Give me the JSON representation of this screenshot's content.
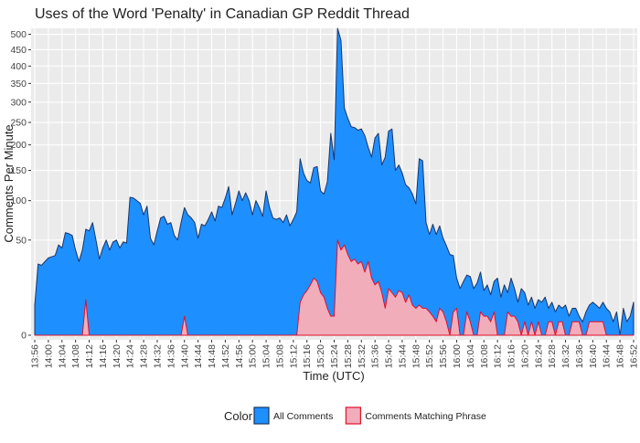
{
  "chart_data": {
    "type": "area",
    "title": "Uses of the Word 'Penalty' in Canadian GP Reddit Thread",
    "x_label": "Time (UTC)",
    "y_label": "Comments Per Minute",
    "legend_title": "Color",
    "y_scale": "sqrt",
    "grid": true,
    "legend_position": "bottom",
    "ylim": [
      0,
      520
    ],
    "yticks": [
      0,
      50,
      100,
      150,
      200,
      250,
      300,
      350,
      400,
      450,
      500
    ],
    "xticks": [
      "13:56",
      "14:00",
      "14:04",
      "14:08",
      "14:12",
      "14:16",
      "14:20",
      "14:24",
      "14:28",
      "14:32",
      "14:36",
      "14:40",
      "14:44",
      "14:48",
      "14:52",
      "14:56",
      "15:00",
      "15:04",
      "15:08",
      "15:12",
      "15:16",
      "15:20",
      "15:24",
      "15:28",
      "15:32",
      "15:36",
      "15:40",
      "15:44",
      "15:48",
      "15:52",
      "15:56",
      "16:00",
      "16:04",
      "16:08",
      "16:12",
      "16:16",
      "16:20",
      "16:24",
      "16:28",
      "16:32",
      "16:36",
      "16:40",
      "16:44",
      "16:48",
      "16:52"
    ],
    "x": [
      "13:56",
      "13:57",
      "13:58",
      "13:59",
      "14:00",
      "14:01",
      "14:02",
      "14:03",
      "14:04",
      "14:05",
      "14:06",
      "14:07",
      "14:08",
      "14:09",
      "14:10",
      "14:11",
      "14:12",
      "14:13",
      "14:14",
      "14:15",
      "14:16",
      "14:17",
      "14:18",
      "14:19",
      "14:20",
      "14:21",
      "14:22",
      "14:23",
      "14:24",
      "14:25",
      "14:26",
      "14:27",
      "14:28",
      "14:29",
      "14:30",
      "14:31",
      "14:32",
      "14:33",
      "14:34",
      "14:35",
      "14:36",
      "14:37",
      "14:38",
      "14:39",
      "14:40",
      "14:41",
      "14:42",
      "14:43",
      "14:44",
      "14:45",
      "14:46",
      "14:47",
      "14:48",
      "14:49",
      "14:50",
      "14:51",
      "14:52",
      "14:53",
      "14:54",
      "14:55",
      "14:56",
      "14:57",
      "14:58",
      "14:59",
      "15:00",
      "15:01",
      "15:02",
      "15:03",
      "15:04",
      "15:05",
      "15:06",
      "15:07",
      "15:08",
      "15:09",
      "15:10",
      "15:11",
      "15:12",
      "15:13",
      "15:14",
      "15:15",
      "15:16",
      "15:17",
      "15:18",
      "15:19",
      "15:20",
      "15:21",
      "15:22",
      "15:23",
      "15:24",
      "15:25",
      "15:26",
      "15:27",
      "15:28",
      "15:29",
      "15:30",
      "15:31",
      "15:32",
      "15:33",
      "15:34",
      "15:35",
      "15:36",
      "15:37",
      "15:38",
      "15:39",
      "15:40",
      "15:41",
      "15:42",
      "15:43",
      "15:44",
      "15:45",
      "15:46",
      "15:47",
      "15:48",
      "15:49",
      "15:50",
      "15:51",
      "15:52",
      "15:53",
      "15:54",
      "15:55",
      "15:56",
      "15:57",
      "15:58",
      "15:59",
      "16:00",
      "16:01",
      "16:02",
      "16:03",
      "16:04",
      "16:05",
      "16:06",
      "16:07",
      "16:08",
      "16:09",
      "16:10",
      "16:11",
      "16:12",
      "16:13",
      "16:14",
      "16:15",
      "16:16",
      "16:17",
      "16:18",
      "16:19",
      "16:20",
      "16:21",
      "16:22",
      "16:23",
      "16:24",
      "16:25",
      "16:26",
      "16:27",
      "16:28",
      "16:29",
      "16:30",
      "16:31",
      "16:32",
      "16:33",
      "16:34",
      "16:35",
      "16:36",
      "16:37",
      "16:38",
      "16:39",
      "16:40",
      "16:41",
      "16:42",
      "16:43",
      "16:44",
      "16:45",
      "16:46",
      "16:47",
      "16:48",
      "16:49",
      "16:50",
      "16:51",
      "16:52"
    ],
    "series": [
      {
        "name": "All Comments",
        "color": "#1e8fff",
        "edge_color": "#1b3566",
        "values": [
          5,
          28,
          27,
          30,
          33,
          34,
          35,
          45,
          42,
          58,
          57,
          55,
          40,
          30,
          40,
          62,
          60,
          70,
          50,
          32,
          42,
          50,
          40,
          48,
          50,
          42,
          48,
          47,
          105,
          104,
          100,
          96,
          80,
          92,
          52,
          45,
          60,
          76,
          78,
          68,
          70,
          55,
          50,
          70,
          90,
          80,
          76,
          70,
          52,
          68,
          66,
          74,
          84,
          72,
          92,
          90,
          104,
          122,
          80,
          96,
          115,
          100,
          112,
          100,
          80,
          100,
          90,
          78,
          115,
          90,
          76,
          74,
          76,
          70,
          80,
          66,
          74,
          84,
          172,
          145,
          132,
          128,
          155,
          157,
          115,
          110,
          130,
          225,
          170,
          520,
          480,
          285,
          260,
          240,
          238,
          232,
          235,
          220,
          195,
          175,
          215,
          225,
          160,
          175,
          230,
          235,
          150,
          160,
          145,
          125,
          120,
          110,
          95,
          172,
          168,
          70,
          56,
          68,
          56,
          66,
          52,
          44,
          36,
          35,
          18,
          12,
          16,
          20,
          19,
          12,
          15,
          22,
          11,
          14,
          9,
          16,
          18,
          8,
          14,
          10,
          18,
          12,
          6,
          12,
          10,
          5,
          8,
          4,
          7,
          6,
          8,
          4,
          6,
          3,
          5,
          4,
          5,
          2,
          4,
          4,
          2,
          1,
          3,
          5,
          6,
          5,
          4,
          6,
          4,
          3,
          1,
          3,
          0,
          4,
          1,
          2,
          6
        ]
      },
      {
        "name": "Comments Matching Phrase",
        "color": "#f2adbb",
        "edge_color": "#e0102a",
        "values": [
          0,
          0,
          0,
          0,
          0,
          0,
          0,
          0,
          0,
          0,
          0,
          0,
          0,
          0,
          0,
          7,
          0,
          0,
          0,
          0,
          0,
          0,
          0,
          0,
          0,
          0,
          0,
          0,
          0,
          0,
          0,
          0,
          0,
          0,
          0,
          0,
          0,
          0,
          0,
          0,
          0,
          0,
          0,
          0,
          2,
          0,
          0,
          0,
          0,
          0,
          0,
          0,
          0,
          0,
          0,
          0,
          0,
          0,
          0,
          0,
          0,
          0,
          0,
          0,
          0,
          0,
          0,
          0,
          0,
          0,
          0,
          0,
          0,
          0,
          0,
          0,
          0,
          0,
          6,
          9,
          11,
          14,
          18,
          16,
          10,
          8,
          4,
          2,
          2,
          50,
          40,
          45,
          36,
          30,
          32,
          28,
          30,
          22,
          30,
          18,
          14,
          16,
          10,
          4,
          12,
          10,
          8,
          11,
          10,
          6,
          9,
          5,
          4,
          5,
          4,
          4,
          3,
          2,
          1,
          4,
          3,
          1,
          0,
          3,
          4,
          0,
          0,
          3,
          1,
          0,
          0,
          3,
          2,
          2,
          1,
          3,
          0,
          0,
          0,
          3,
          2,
          2,
          1,
          0,
          1,
          0,
          1,
          0,
          1,
          0,
          0,
          1,
          1,
          0,
          1,
          1,
          0,
          0,
          1,
          1,
          1,
          0,
          0,
          1,
          1,
          1,
          1,
          1,
          0,
          0,
          0,
          0,
          0,
          0,
          0,
          0,
          0
        ]
      }
    ]
  }
}
